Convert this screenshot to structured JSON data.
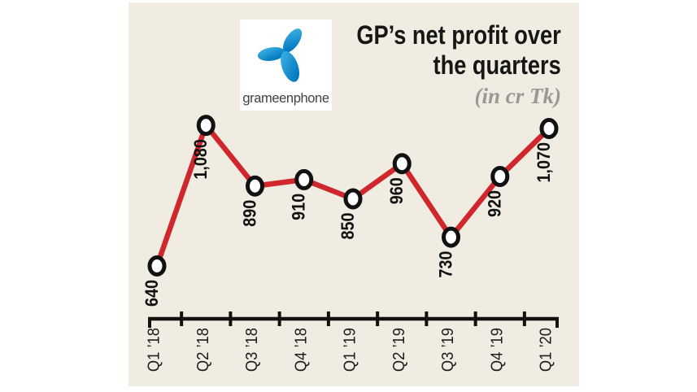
{
  "brand": {
    "name": "grameenphone",
    "logo_icon": "telenor-pinwheel-icon",
    "logo_color_top": "#45b8e8",
    "logo_color_bottom": "#0077be"
  },
  "header": {
    "title_line1": "GP’s net profit over",
    "title_line2": "the quarters",
    "subtitle": "(in cr Tk)"
  },
  "panel": {
    "background_color": "#f0ece1"
  },
  "chart_data": {
    "type": "line",
    "title": "GP’s net profit over the quarters",
    "subtitle": "(in cr Tk)",
    "unit": "cr Tk",
    "categories": [
      "Q1 ’18",
      "Q2 ’18",
      "Q3 ’18",
      "Q4 ’18",
      "Q1 ’19",
      "Q2 ’19",
      "Q3 ’19",
      "Q4 ’19",
      "Q1 ’20"
    ],
    "values": [
      640,
      1080,
      890,
      910,
      850,
      960,
      730,
      920,
      1070
    ],
    "value_labels": [
      "640",
      "1,080",
      "890",
      "910",
      "850",
      "960",
      "730",
      "920",
      "1,070"
    ],
    "ylim": [
      600,
      1150
    ],
    "grid": false,
    "legend": "none",
    "label_rotation_deg": 90,
    "marker_style": "open-circle",
    "marker_fill": "#ffffff",
    "marker_stroke": "#111111",
    "line_color": "#d0272d",
    "axis_color": "#111111"
  }
}
